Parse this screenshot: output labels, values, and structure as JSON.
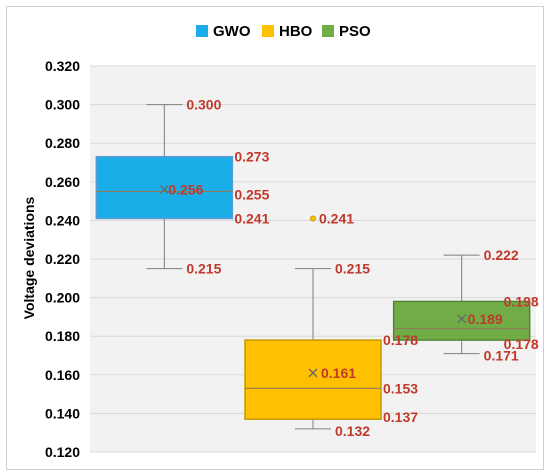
{
  "chart_data": {
    "type": "boxplot",
    "title": "",
    "xlabel": "",
    "ylabel": "Voltage deviations",
    "ylim": [
      0.12,
      0.32
    ],
    "yticks": [
      "0.120",
      "0.140",
      "0.160",
      "0.180",
      "0.200",
      "0.220",
      "0.240",
      "0.260",
      "0.280",
      "0.300",
      "0.320"
    ],
    "grid": true,
    "legend_position": "top",
    "series": [
      {
        "name": "GWO",
        "color": "#1aaee8",
        "min": 0.215,
        "q1": 0.241,
        "median": 0.255,
        "mean": 0.256,
        "q3": 0.273,
        "max": 0.3,
        "outliers": [],
        "labels": [
          "0.300",
          "0.273",
          "0.256",
          "0.255",
          "0.241",
          "0.215"
        ]
      },
      {
        "name": "HBO",
        "color": "#ffc000",
        "min": 0.132,
        "q1": 0.137,
        "median": 0.153,
        "mean": 0.161,
        "q3": 0.178,
        "max": 0.215,
        "outliers": [
          0.241
        ],
        "labels": [
          "0.241",
          "0.215",
          "0.178",
          "0.161",
          "0.153",
          "0.137",
          "0.132"
        ]
      },
      {
        "name": "PSO",
        "color": "#70ad47",
        "min": 0.171,
        "q1": 0.178,
        "median": 0.184,
        "mean": 0.189,
        "q3": 0.198,
        "max": 0.222,
        "outliers": [],
        "labels": [
          "0.222",
          "0.198",
          "0.189",
          "0.178",
          "0.171"
        ]
      }
    ]
  }
}
